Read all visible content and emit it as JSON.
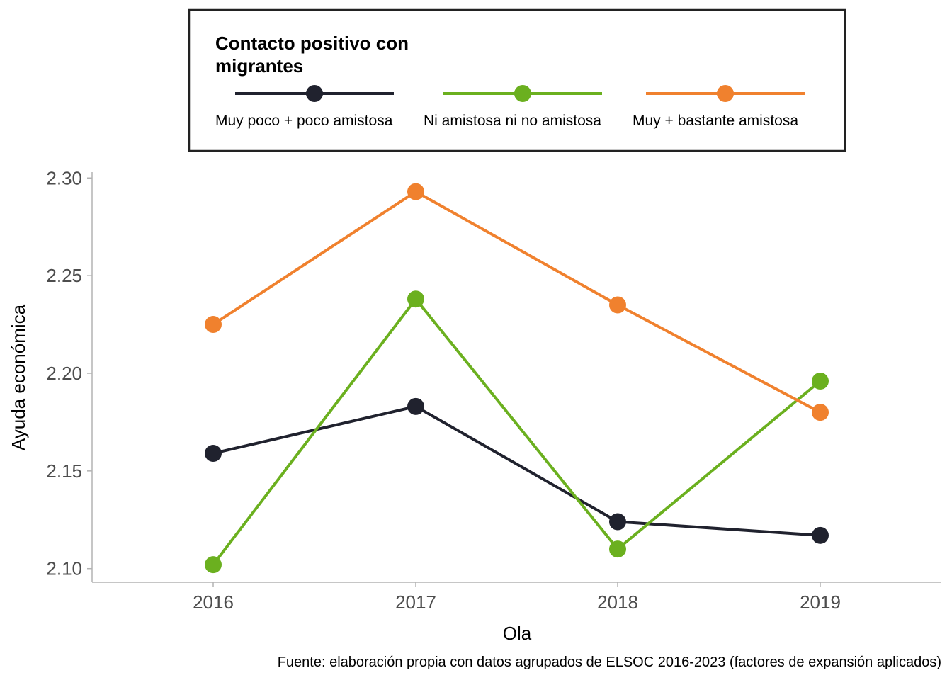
{
  "chart_data": {
    "type": "line",
    "x": [
      2016,
      2017,
      2018,
      2019
    ],
    "x_tick_labels": [
      "2016",
      "2017",
      "2018",
      "2019"
    ],
    "xlabel": "Ola",
    "ylabel": "Ayuda económica",
    "ylim": [
      2.093,
      2.303
    ],
    "y_ticks": [
      2.1,
      2.15,
      2.2,
      2.25,
      2.3
    ],
    "y_tick_labels": [
      "2.10",
      "2.15",
      "2.20",
      "2.25",
      "2.30"
    ],
    "caption": "Fuente: elaboración propia con datos agrupados de ELSOC 2016-2023 (factores de expansión aplicados)",
    "legend": {
      "title_line1": "Contacto positivo con",
      "title_line2": "migrantes",
      "placement": "top"
    },
    "grid": false,
    "series": [
      {
        "name": "Muy poco + poco amistosa",
        "color": "#20222e",
        "values": [
          2.159,
          2.183,
          2.124,
          2.117
        ]
      },
      {
        "name": "Ni amistosa ni no amistosa",
        "color": "#6bb01f",
        "values": [
          2.102,
          2.238,
          2.11,
          2.196
        ]
      },
      {
        "name": "Muy + bastante amistosa",
        "color": "#f0812e",
        "values": [
          2.225,
          2.293,
          2.235,
          2.18
        ]
      }
    ]
  }
}
